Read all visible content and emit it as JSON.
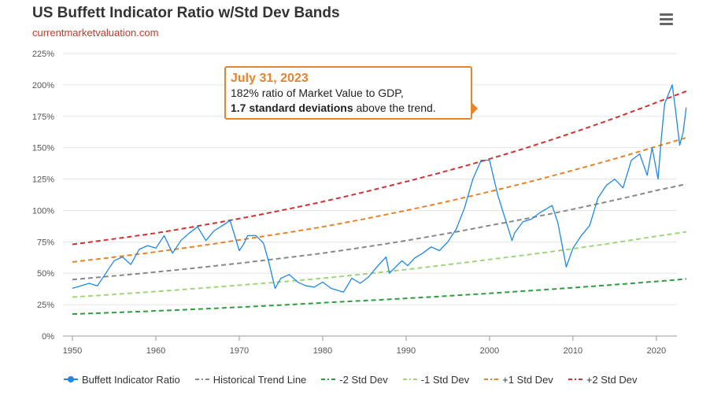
{
  "header": {
    "title": "US Buffett Indicator Ratio w/Std Dev Bands",
    "subtitle": "currentmarketvaluation.com"
  },
  "menu": {
    "icon": "hamburger-menu-icon"
  },
  "tooltip": {
    "date": "July 31, 2023",
    "line1": "182% ratio of Market Value to GDP,",
    "line2_bold": "1.7 standard deviations",
    "line2_rest": " above the trend."
  },
  "legend": [
    {
      "label": "Buffett Indicator Ratio",
      "color": "#1e88e5",
      "style": "marker"
    },
    {
      "label": "Historical Trend Line",
      "color": "#888888",
      "style": "dashdot"
    },
    {
      "label": "-2 Std Dev",
      "color": "#2e9e3e",
      "style": "dashdot"
    },
    {
      "label": "-1 Std Dev",
      "color": "#9fd67a",
      "style": "dashdot"
    },
    {
      "label": "+1 Std Dev",
      "color": "#e8832a",
      "style": "dashdot"
    },
    {
      "label": "+2 Std Dev",
      "color": "#cc3333",
      "style": "dashdot"
    }
  ],
  "chart_data": {
    "type": "line",
    "title": "US Buffett Indicator Ratio w/Std Dev Bands",
    "xlim": [
      1950,
      2023.6
    ],
    "ylim": [
      0,
      225
    ],
    "x_ticks": [
      1950,
      1960,
      1970,
      1980,
      1990,
      2000,
      2010,
      2020
    ],
    "y_ticks": [
      0,
      25,
      50,
      75,
      100,
      125,
      150,
      175,
      200,
      225
    ],
    "y_tick_labels": [
      "0%",
      "25%",
      "50%",
      "75%",
      "100%",
      "125%",
      "150%",
      "175%",
      "200%",
      "225%"
    ],
    "grid": "horizontal",
    "legend_position": "bottom",
    "bands": [
      {
        "name": "Historical Trend Line",
        "color": "#888888",
        "x": [
          1950,
          1960,
          1970,
          1980,
          1990,
          2000,
          2010,
          2020,
          2023.6
        ],
        "values": [
          45,
          51,
          58,
          66,
          76,
          88,
          101,
          116,
          121
        ]
      },
      {
        "name": "-2 Std Dev",
        "color": "#2e9e3e",
        "x": [
          1950,
          1960,
          1970,
          1980,
          1990,
          2000,
          2010,
          2020,
          2023.6
        ],
        "values": [
          17.5,
          20,
          23,
          26.5,
          30,
          34,
          38.5,
          43.5,
          45.5
        ]
      },
      {
        "name": "-1 Std Dev",
        "color": "#9fd67a",
        "x": [
          1950,
          1960,
          1970,
          1980,
          1990,
          2000,
          2010,
          2020,
          2023.6
        ],
        "values": [
          31,
          35.5,
          40.5,
          46,
          53,
          61,
          69.5,
          79.5,
          83
        ]
      },
      {
        "name": "+1 Std Dev",
        "color": "#e8832a",
        "x": [
          1950,
          1960,
          1970,
          1980,
          1990,
          2000,
          2010,
          2020,
          2023.6
        ],
        "values": [
          59,
          67,
          76.5,
          87,
          100,
          115,
          132,
          151,
          158
        ]
      },
      {
        "name": "+2 Std Dev",
        "color": "#cc3333",
        "x": [
          1950,
          1960,
          1970,
          1980,
          1990,
          2000,
          2010,
          2020,
          2023.6
        ],
        "values": [
          73,
          82,
          93.5,
          107,
          123,
          141,
          162,
          186,
          195
        ]
      }
    ],
    "series": [
      {
        "name": "Buffett Indicator Ratio",
        "color": "#1e88e5",
        "x": [
          1950,
          1951,
          1952,
          1953,
          1954,
          1955,
          1956,
          1957,
          1958,
          1959,
          1960,
          1961,
          1962,
          1963,
          1964,
          1965,
          1966,
          1967,
          1968,
          1968.9,
          1970,
          1970.5,
          1971,
          1972,
          1972.9,
          1973.5,
          1974.3,
          1975,
          1976,
          1977,
          1978,
          1979,
          1980,
          1981,
          1982.5,
          1983.5,
          1984.5,
          1985.5,
          1986.5,
          1987.6,
          1988,
          1989.5,
          1990.2,
          1991,
          1992,
          1993,
          1994,
          1995,
          1996,
          1997,
          1998,
          1999,
          2000,
          2001,
          2002.7,
          2003,
          2004,
          2005,
          2006,
          2007.5,
          2008.2,
          2009.2,
          2010,
          2011,
          2012,
          2013,
          2014,
          2015,
          2016,
          2017,
          2018,
          2018.9,
          2019.5,
          2020.2,
          2020.6,
          2021,
          2021.9,
          2022.3,
          2022.8,
          2023.2,
          2023.58
        ],
        "values": [
          38,
          40,
          42,
          40,
          50,
          60,
          63,
          57,
          69,
          72,
          70,
          80,
          66,
          76,
          82,
          87,
          76,
          84,
          88,
          92,
          68,
          73,
          80,
          80,
          74,
          60,
          38,
          46,
          49,
          43,
          40,
          39,
          43,
          38,
          35,
          46,
          42,
          47,
          55,
          63,
          50,
          60,
          56,
          62,
          66,
          71,
          68,
          75,
          85,
          102,
          125,
          140,
          140,
          112,
          76,
          82,
          91,
          93,
          98,
          104,
          90,
          55,
          70,
          80,
          88,
          110,
          120,
          125,
          118,
          140,
          145,
          128,
          150,
          125,
          158,
          185,
          200,
          180,
          152,
          162,
          182
        ]
      }
    ]
  }
}
